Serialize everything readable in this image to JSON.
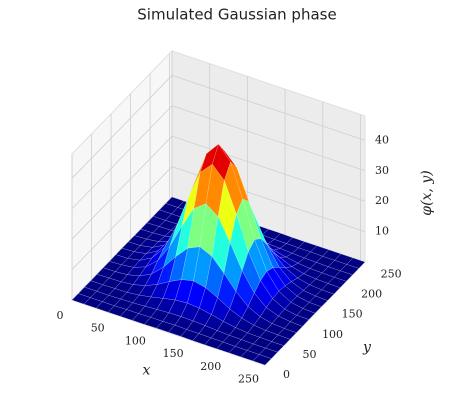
{
  "chart_data": {
    "type": "surface",
    "title": "Simulated Gaussian phase",
    "x_label": "x",
    "y_label": "y",
    "z_label": "φ(x, y)",
    "x": [
      0,
      16,
      32,
      48,
      64,
      80,
      96,
      112,
      128,
      144,
      160,
      176,
      192,
      208,
      224,
      240,
      256
    ],
    "y": [
      0,
      16,
      32,
      48,
      64,
      80,
      96,
      112,
      128,
      144,
      160,
      176,
      192,
      208,
      224,
      240,
      256
    ],
    "z": [
      [
        0,
        0,
        0,
        0,
        0,
        0,
        0,
        0.1,
        0.1,
        0.1,
        0,
        0,
        0,
        0,
        0,
        0,
        0
      ],
      [
        0,
        0,
        0,
        0,
        0.1,
        0.1,
        0.2,
        0.2,
        0.3,
        0.2,
        0.2,
        0.1,
        0.1,
        0,
        0,
        0,
        0
      ],
      [
        0,
        0,
        0,
        0.1,
        0.2,
        0.4,
        0.7,
        0.9,
        1.0,
        0.9,
        0.7,
        0.4,
        0.2,
        0.1,
        0,
        0,
        0
      ],
      [
        0,
        0,
        0.1,
        0.2,
        0.6,
        1.3,
        2.2,
        3.0,
        3.3,
        3.0,
        2.2,
        1.3,
        0.6,
        0.2,
        0.1,
        0,
        0
      ],
      [
        0,
        0.1,
        0.2,
        0.6,
        1.6,
        3.3,
        5.6,
        7.6,
        8.5,
        7.6,
        5.6,
        3.3,
        1.6,
        0.6,
        0.2,
        0.1,
        0
      ],
      [
        0,
        0.1,
        0.4,
        1.3,
        3.3,
        6.9,
        11.6,
        15.8,
        17.6,
        15.8,
        11.6,
        6.9,
        3.3,
        1.3,
        0.4,
        0.1,
        0
      ],
      [
        0,
        0.2,
        0.7,
        2.2,
        5.6,
        11.6,
        19.5,
        26.7,
        29.6,
        26.7,
        19.5,
        11.6,
        5.6,
        2.2,
        0.7,
        0.2,
        0
      ],
      [
        0.1,
        0.2,
        0.9,
        3.0,
        7.6,
        15.8,
        26.7,
        36.5,
        40.5,
        36.5,
        26.7,
        15.8,
        7.6,
        3.0,
        0.9,
        0.2,
        0.1
      ],
      [
        0.1,
        0.3,
        1.0,
        3.3,
        8.5,
        17.6,
        29.6,
        40.5,
        45.0,
        40.5,
        29.6,
        17.6,
        8.5,
        3.3,
        1.0,
        0.3,
        0.1
      ],
      [
        0.1,
        0.2,
        0.9,
        3.0,
        7.6,
        15.8,
        26.7,
        36.5,
        40.5,
        36.5,
        26.7,
        15.8,
        7.6,
        3.0,
        0.9,
        0.2,
        0.1
      ],
      [
        0,
        0.2,
        0.7,
        2.2,
        5.6,
        11.6,
        19.5,
        26.7,
        29.6,
        26.7,
        19.5,
        11.6,
        5.6,
        2.2,
        0.7,
        0.2,
        0
      ],
      [
        0,
        0.1,
        0.4,
        1.3,
        3.3,
        6.9,
        11.6,
        15.8,
        17.6,
        15.8,
        11.6,
        6.9,
        3.3,
        1.3,
        0.4,
        0.1,
        0
      ],
      [
        0,
        0.1,
        0.2,
        0.6,
        1.6,
        3.3,
        5.6,
        7.6,
        8.5,
        7.6,
        5.6,
        3.3,
        1.6,
        0.6,
        0.2,
        0.1,
        0
      ],
      [
        0,
        0,
        0.1,
        0.2,
        0.6,
        1.3,
        2.2,
        3.0,
        3.3,
        3.0,
        2.2,
        1.3,
        0.6,
        0.2,
        0.1,
        0,
        0
      ],
      [
        0,
        0,
        0,
        0.1,
        0.2,
        0.4,
        0.7,
        0.9,
        1.0,
        0.9,
        0.7,
        0.4,
        0.2,
        0.1,
        0,
        0,
        0
      ],
      [
        0,
        0,
        0,
        0,
        0.1,
        0.1,
        0.2,
        0.2,
        0.3,
        0.2,
        0.2,
        0.1,
        0.1,
        0,
        0,
        0,
        0
      ],
      [
        0,
        0,
        0,
        0,
        0,
        0,
        0,
        0.1,
        0.1,
        0.1,
        0,
        0,
        0,
        0,
        0,
        0,
        0
      ]
    ],
    "xlim": [
      0,
      256
    ],
    "ylim": [
      0,
      256
    ],
    "zlim": [
      0,
      48
    ],
    "xticks": [
      0,
      50,
      100,
      150,
      200,
      250
    ],
    "yticks": [
      0,
      50,
      100,
      150,
      200,
      250
    ],
    "zticks": [
      10,
      20,
      30,
      40
    ],
    "colormap": "jet",
    "grid": true
  }
}
